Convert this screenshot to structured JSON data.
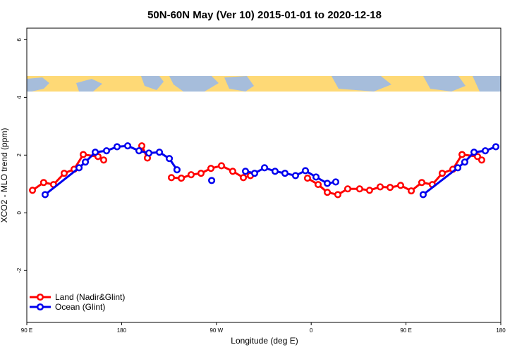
{
  "chart_data": {
    "type": "line",
    "title": "50N-60N May (Ver 10)   2015-01-01 to 2020-12-18",
    "x_label": "Longitude (deg E)",
    "y_label": "XCO2 - MLO trend (ppm)",
    "xlim": [
      90,
      540
    ],
    "xticks": [
      {
        "value": 90,
        "label": "90 E"
      },
      180,
      {
        "value": 270,
        "label": "90 W"
      },
      {
        "value": 360,
        "label": "0"
      },
      {
        "value": 450,
        "label": "90 E"
      },
      {
        "value": 540,
        "label": "180"
      }
    ],
    "ylim": [
      -3.8,
      6.4
    ],
    "yticks": [
      -2,
      0,
      2,
      4,
      6
    ],
    "legend": "bottom-left",
    "series": [
      {
        "name": "Land (Nadir&Glint)",
        "color": "#ff0000",
        "x": [
          95.4,
          106,
          115.4,
          125.5,
          134.9,
          143.6,
          157.6,
          163,
          null,
          199.2,
          204.5,
          null,
          227.3,
          236.7,
          246,
          255.4,
          264.8,
          274.8,
          285.5,
          295.6,
          302.3,
          null,
          356.5,
          366.6,
          375.3,
          385.3,
          394.7,
          406,
          415.4,
          425.5,
          434.9,
          444.9,
          455,
          465,
          475,
          484.4,
          494.5,
          503.2,
          517.9,
          521.9
        ],
        "values": [
          0.78,
          1.05,
          0.98,
          1.37,
          1.51,
          2.02,
          1.95,
          1.83,
          null,
          2.32,
          1.9,
          null,
          1.22,
          1.2,
          1.32,
          1.37,
          1.54,
          1.63,
          1.44,
          1.22,
          1.29,
          null,
          1.2,
          0.98,
          0.71,
          0.63,
          0.83,
          0.83,
          0.78,
          0.9,
          0.88,
          0.95,
          0.76,
          1.05,
          0.98,
          1.37,
          1.51,
          2.02,
          1.95,
          1.83
        ]
      },
      {
        "name": "Ocean (Glint)",
        "color": "#0000ee",
        "x": [
          107.4,
          139.6,
          145.6,
          155,
          165.7,
          175.7,
          185.8,
          196.5,
          205.9,
          215.9,
          225.3,
          232.6,
          null,
          265.5,
          null,
          297.6,
          306.3,
          315.7,
          325.7,
          335.1,
          345.1,
          354.5,
          364.6,
          375.3,
          383.3,
          null,
          466.3,
          499.2,
          505.8,
          514.6,
          525.3,
          535.3
        ],
        "values": [
          0.63,
          1.56,
          1.76,
          2.1,
          2.15,
          2.29,
          2.32,
          2.15,
          2.07,
          2.1,
          1.88,
          1.49,
          null,
          1.12,
          null,
          1.44,
          1.37,
          1.56,
          1.44,
          1.37,
          1.29,
          1.46,
          1.24,
          1.02,
          1.07,
          null,
          0.63,
          1.56,
          1.76,
          2.1,
          2.15,
          2.29
        ]
      }
    ]
  }
}
